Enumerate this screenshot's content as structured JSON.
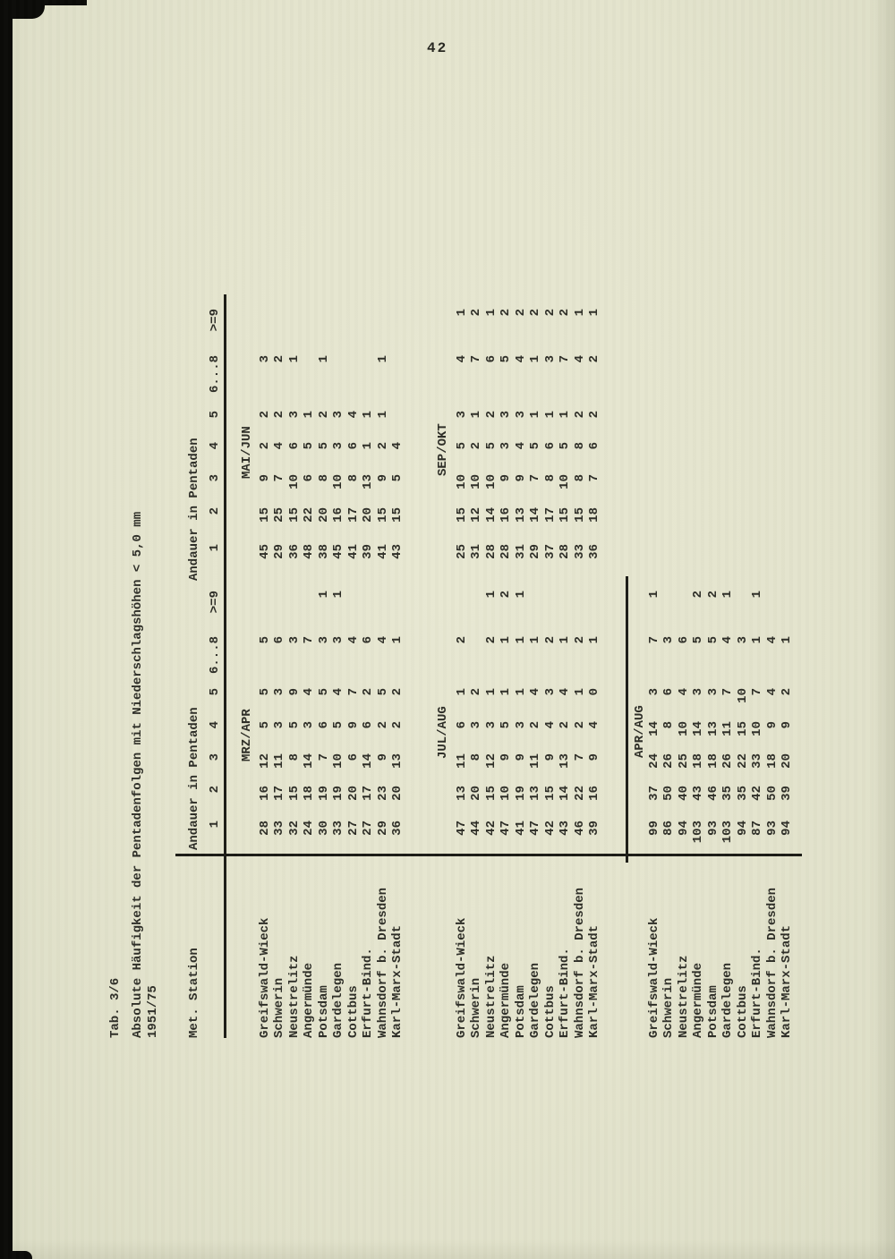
{
  "page": {
    "number": "42"
  },
  "colors": {
    "paper": "#e5e5cf",
    "ink": "#2e2e27",
    "rule": "#1c1c16",
    "scan_edge": "#0b0b08"
  },
  "table": {
    "tab_label": "Tab. 3/6",
    "title": "Absolute Häufigkeit der Pentadenfolgen mit Niederschlagshöhen < 5,0 mm",
    "period": "1951/75",
    "station_header": "Met. Station",
    "group_header_left": "Andauer in Pentaden",
    "group_header_right": "Andauer in Pentaden",
    "columns": [
      "1",
      "2",
      "3",
      "4",
      "5",
      "6...8",
      ">=9"
    ],
    "stations": [
      "Greifswald-Wieck",
      "Schwerin",
      "Neustrelitz",
      "Angermünde",
      "Potsdam",
      "Gardelegen",
      "Cottbus",
      "Erfurt-Bind.",
      "Wahnsdorf b. Dresden",
      "Karl-Marx-Stadt"
    ],
    "blocks": [
      {
        "left_label": "MRZ/APR",
        "right_label": "MAI/JUN",
        "left_rows": [
          [
            "28",
            "16",
            "12",
            "5",
            "5",
            "5",
            ""
          ],
          [
            "33",
            "17",
            "11",
            "3",
            "3",
            "6",
            ""
          ],
          [
            "32",
            "15",
            "8",
            "5",
            "9",
            "3",
            ""
          ],
          [
            "24",
            "18",
            "14",
            "3",
            "4",
            "7",
            ""
          ],
          [
            "30",
            "19",
            "7",
            "6",
            "5",
            "3",
            "1"
          ],
          [
            "33",
            "19",
            "10",
            "5",
            "4",
            "3",
            "1"
          ],
          [
            "27",
            "20",
            "6",
            "9",
            "7",
            "4",
            ""
          ],
          [
            "27",
            "17",
            "14",
            "6",
            "2",
            "6",
            ""
          ],
          [
            "29",
            "23",
            "9",
            "2",
            "5",
            "4",
            ""
          ],
          [
            "36",
            "20",
            "13",
            "2",
            "2",
            "1",
            ""
          ]
        ],
        "right_rows": [
          [
            "45",
            "15",
            "9",
            "2",
            "2",
            "3",
            ""
          ],
          [
            "29",
            "25",
            "7",
            "4",
            "2",
            "2",
            ""
          ],
          [
            "36",
            "15",
            "10",
            "6",
            "3",
            "1",
            ""
          ],
          [
            "48",
            "22",
            "6",
            "5",
            "1",
            "",
            ""
          ],
          [
            "38",
            "20",
            "8",
            "5",
            "2",
            "1",
            ""
          ],
          [
            "45",
            "16",
            "10",
            "3",
            "3",
            "",
            ""
          ],
          [
            "41",
            "17",
            "8",
            "6",
            "4",
            "",
            ""
          ],
          [
            "39",
            "20",
            "13",
            "1",
            "1",
            "",
            ""
          ],
          [
            "41",
            "15",
            "9",
            "2",
            "1",
            "1",
            ""
          ],
          [
            "43",
            "15",
            "5",
            "4",
            "",
            "",
            ""
          ]
        ]
      },
      {
        "left_label": "JUL/AUG",
        "right_label": "SEP/OKT",
        "left_rows": [
          [
            "47",
            "13",
            "11",
            "6",
            "1",
            "2",
            ""
          ],
          [
            "44",
            "20",
            "8",
            "3",
            "2",
            "",
            ""
          ],
          [
            "42",
            "15",
            "12",
            "3",
            "1",
            "2",
            "1"
          ],
          [
            "47",
            "10",
            "9",
            "5",
            "1",
            "1",
            "2"
          ],
          [
            "41",
            "19",
            "9",
            "3",
            "1",
            "1",
            "1"
          ],
          [
            "47",
            "13",
            "11",
            "2",
            "4",
            "1",
            ""
          ],
          [
            "42",
            "15",
            "9",
            "4",
            "3",
            "2",
            ""
          ],
          [
            "43",
            "14",
            "13",
            "2",
            "4",
            "1",
            ""
          ],
          [
            "46",
            "22",
            "7",
            "2",
            "1",
            "2",
            ""
          ],
          [
            "39",
            "16",
            "9",
            "4",
            "0",
            "1",
            ""
          ]
        ],
        "right_rows": [
          [
            "25",
            "15",
            "10",
            "5",
            "3",
            "4",
            "1"
          ],
          [
            "31",
            "12",
            "10",
            "2",
            "1",
            "7",
            "2"
          ],
          [
            "28",
            "14",
            "10",
            "5",
            "2",
            "6",
            "1"
          ],
          [
            "28",
            "16",
            "9",
            "3",
            "3",
            "5",
            "2"
          ],
          [
            "31",
            "13",
            "9",
            "4",
            "3",
            "4",
            "2"
          ],
          [
            "29",
            "14",
            "7",
            "5",
            "1",
            "1",
            "2"
          ],
          [
            "37",
            "17",
            "8",
            "6",
            "1",
            "3",
            "2"
          ],
          [
            "28",
            "15",
            "10",
            "5",
            "1",
            "7",
            "2"
          ],
          [
            "33",
            "15",
            "8",
            "8",
            "2",
            "4",
            "1"
          ],
          [
            "36",
            "18",
            "7",
            "6",
            "2",
            "2",
            "1"
          ]
        ]
      },
      {
        "left_label": "APR/AUG",
        "right_label": "",
        "left_rows": [
          [
            "99",
            "37",
            "24",
            "14",
            "3",
            "7",
            "1"
          ],
          [
            "86",
            "50",
            "26",
            "8",
            "6",
            "3",
            ""
          ],
          [
            "94",
            "40",
            "25",
            "10",
            "4",
            "6",
            ""
          ],
          [
            "103",
            "43",
            "18",
            "14",
            "3",
            "5",
            "2"
          ],
          [
            "93",
            "46",
            "18",
            "13",
            "3",
            "5",
            "2"
          ],
          [
            "103",
            "35",
            "26",
            "11",
            "7",
            "4",
            "1"
          ],
          [
            "94",
            "35",
            "22",
            "15",
            "10",
            "3",
            ""
          ],
          [
            "87",
            "42",
            "33",
            "10",
            "7",
            "1",
            "1"
          ],
          [
            "93",
            "50",
            "18",
            "9",
            "4",
            "4",
            ""
          ],
          [
            "94",
            "39",
            "20",
            "9",
            "2",
            "1",
            ""
          ]
        ],
        "right_rows": [
          [
            "",
            "",
            "",
            "",
            "",
            "",
            ""
          ],
          [
            "",
            "",
            "",
            "",
            "",
            "",
            ""
          ],
          [
            "",
            "",
            "",
            "",
            "",
            "",
            ""
          ],
          [
            "",
            "",
            "",
            "",
            "",
            "",
            ""
          ],
          [
            "",
            "",
            "",
            "",
            "",
            "",
            ""
          ],
          [
            "",
            "",
            "",
            "",
            "",
            "",
            ""
          ],
          [
            "",
            "",
            "",
            "",
            "",
            "",
            ""
          ],
          [
            "",
            "",
            "",
            "",
            "",
            "",
            ""
          ],
          [
            "",
            "",
            "",
            "",
            "",
            "",
            ""
          ],
          [
            "",
            "",
            "",
            "",
            "",
            "",
            ""
          ]
        ]
      }
    ]
  }
}
